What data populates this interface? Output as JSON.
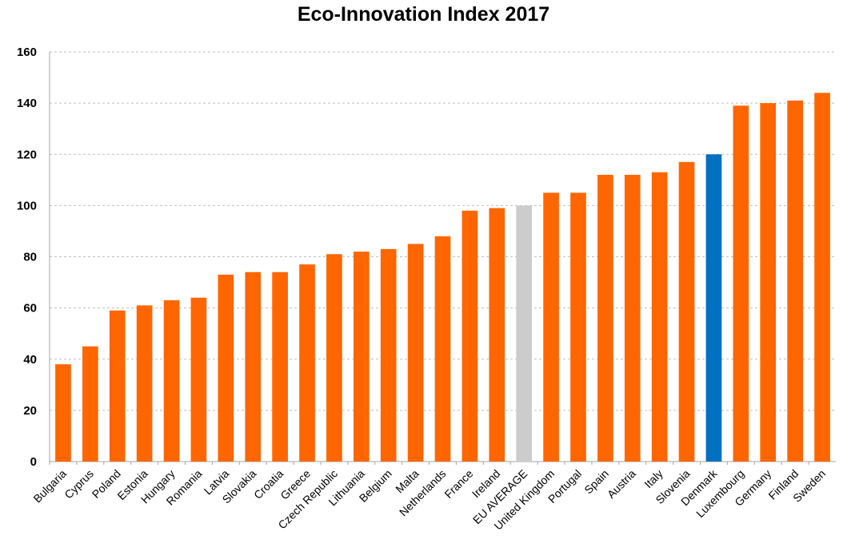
{
  "chart_data": {
    "type": "bar",
    "title": "Eco-Innovation Index 2017",
    "xlabel": "",
    "ylabel": "",
    "ylim": [
      0,
      160
    ],
    "yticks": [
      0,
      20,
      40,
      60,
      80,
      100,
      120,
      140,
      160
    ],
    "grid": "horizontal dashed",
    "legend": "none",
    "categories": [
      "Bulgaria",
      "Cyprus",
      "Poland",
      "Estonia",
      "Hungary",
      "Romania",
      "Latvia",
      "Slovakia",
      "Croatia",
      "Greece",
      "Czech Republic",
      "Lithuania",
      "Belgium",
      "Malta",
      "Netherlands",
      "France",
      "Ireland",
      "EU AVERAGE",
      "United Kingdom",
      "Portugal",
      "Spain",
      "Austria",
      "Italy",
      "Slovenia",
      "Denmark",
      "Luxembourg",
      "Germany",
      "Finland",
      "Sweden"
    ],
    "values": [
      38,
      45,
      59,
      61,
      63,
      64,
      73,
      74,
      74,
      77,
      81,
      82,
      83,
      85,
      88,
      98,
      99,
      100,
      105,
      105,
      112,
      112,
      113,
      117,
      120,
      139,
      140,
      141,
      144
    ],
    "colors": {
      "default": "#ff6600",
      "highlight_categories": {
        "EU AVERAGE": "#cccccc",
        "Denmark": "#0070c0"
      },
      "grid": "#bfbfbf",
      "axis": "#a6a6a6"
    }
  }
}
